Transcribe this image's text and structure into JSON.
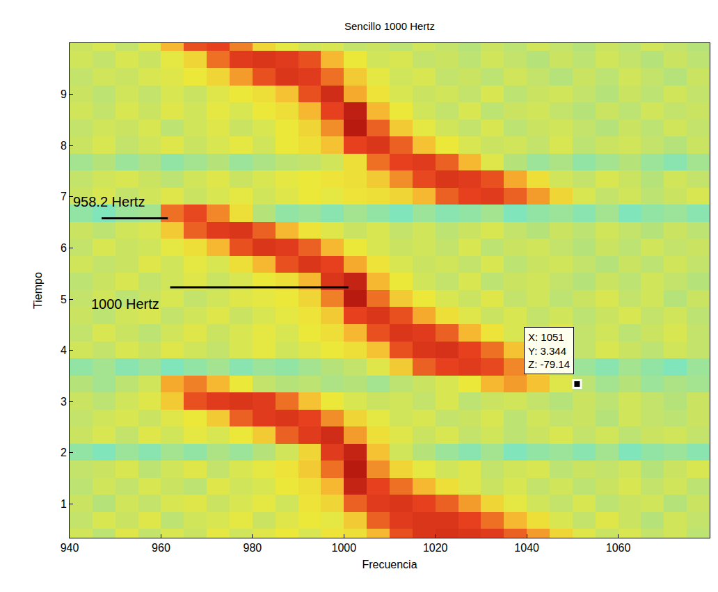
{
  "chart_data": {
    "type": "heatmap",
    "title": "Sencillo 1000 Hertz",
    "x_label": "Frecuencia",
    "y_label": "Tiempo",
    "xlim": [
      940,
      1080
    ],
    "ylim": [
      0.34,
      10.0
    ],
    "xticks": [
      940,
      960,
      980,
      1000,
      1020,
      1040,
      1060
    ],
    "yticks": [
      1,
      2,
      3,
      4,
      5,
      6,
      7,
      8,
      9
    ],
    "zlim": [
      -100,
      -30
    ],
    "x": [
      942.5,
      947.5,
      952.5,
      957.5,
      962.5,
      967.5,
      972.5,
      977.5,
      982.5,
      987.5,
      992.5,
      997.5,
      1002.5,
      1007.5,
      1012.5,
      1017.5,
      1022.5,
      1027.5,
      1032.5,
      1037.5,
      1042.5,
      1047.5,
      1052.5,
      1057.5,
      1062.5,
      1067.5,
      1072.5,
      1077.5
    ],
    "y": [
      0.344,
      0.677,
      1.011,
      1.344,
      1.677,
      2.011,
      2.344,
      2.677,
      3.011,
      3.344,
      3.677,
      4.011,
      4.344,
      4.677,
      5.011,
      5.344,
      5.677,
      6.011,
      6.344,
      6.677,
      7.011,
      7.344,
      7.677,
      8.011,
      8.344,
      8.677,
      9.011,
      9.344,
      9.677,
      10.011
    ],
    "z": [
      [
        -76,
        -79,
        -74,
        -78,
        -75,
        -77,
        -73,
        -76,
        -74,
        -72,
        -75,
        -71,
        -70,
        -62,
        -48,
        -44,
        -43,
        -44,
        -45,
        -50,
        -58,
        -68,
        -74,
        -77,
        -75,
        -78,
        -76,
        -79
      ],
      [
        -78,
        -75,
        -77,
        -74,
        -79,
        -76,
        -75,
        -73,
        -77,
        -74,
        -72,
        -73,
        -66,
        -50,
        -45,
        -44,
        -44,
        -46,
        -52,
        -62,
        -70,
        -75,
        -78,
        -74,
        -77,
        -80,
        -76,
        -78
      ],
      [
        -77,
        -80,
        -76,
        -78,
        -75,
        -74,
        -77,
        -75,
        -73,
        -76,
        -71,
        -68,
        -50,
        -45,
        -44,
        -46,
        -50,
        -58,
        -68,
        -73,
        -76,
        -78,
        -75,
        -79,
        -77,
        -76,
        -80,
        -77
      ],
      [
        -79,
        -76,
        -78,
        -75,
        -77,
        -79,
        -74,
        -76,
        -75,
        -72,
        -70,
        -62,
        -40,
        -46,
        -52,
        -62,
        -70,
        -74,
        -77,
        -75,
        -78,
        -76,
        -79,
        -77,
        -75,
        -78,
        -76,
        -79
      ],
      [
        -78,
        -77,
        -75,
        -79,
        -76,
        -74,
        -78,
        -75,
        -73,
        -71,
        -66,
        -52,
        -38,
        -56,
        -68,
        -73,
        -76,
        -74,
        -78,
        -76,
        -75,
        -79,
        -77,
        -78,
        -76,
        -80,
        -77,
        -75
      ],
      [
        -84,
        -86,
        -83,
        -85,
        -82,
        -84,
        -81,
        -83,
        -80,
        -76,
        -68,
        -45,
        -40,
        -64,
        -76,
        -80,
        -83,
        -85,
        -82,
        -86,
        -84,
        -83,
        -85,
        -82,
        -86,
        -84,
        -83,
        -85
      ],
      [
        -77,
        -75,
        -78,
        -74,
        -76,
        -73,
        -75,
        -72,
        -66,
        -50,
        -45,
        -42,
        -58,
        -70,
        -74,
        -77,
        -75,
        -78,
        -76,
        -79,
        -77,
        -75,
        -78,
        -76,
        -79,
        -77,
        -76,
        -78
      ],
      [
        -78,
        -76,
        -75,
        -77,
        -74,
        -72,
        -66,
        -50,
        -45,
        -44,
        -46,
        -56,
        -68,
        -73,
        -76,
        -75,
        -78,
        -77,
        -75,
        -79,
        -76,
        -78,
        -77,
        -80,
        -76,
        -78,
        -79,
        -77
      ],
      [
        -77,
        -79,
        -76,
        -74,
        -66,
        -48,
        -45,
        -44,
        -45,
        -52,
        -64,
        -72,
        -75,
        -77,
        -76,
        -78,
        -75,
        -79,
        -77,
        -76,
        -78,
        -80,
        -77,
        -79,
        -76,
        -78,
        -80,
        -77
      ],
      [
        -80,
        -82,
        -79,
        -76,
        -60,
        -54,
        -62,
        -72,
        -78,
        -80,
        -79,
        -81,
        -80,
        -82,
        -79,
        -77,
        -75,
        -72,
        -62,
        -58,
        -64,
        -74,
        -79.14,
        -82,
        -80,
        -83,
        -81,
        -82
      ],
      [
        -84,
        -82,
        -85,
        -83,
        -86,
        -84,
        -82,
        -85,
        -83,
        -84,
        -82,
        -80,
        -78,
        -74,
        -66,
        -50,
        -46,
        -45,
        -47,
        -55,
        -68,
        -78,
        -83,
        -85,
        -82,
        -84,
        -86,
        -83
      ],
      [
        -76,
        -78,
        -75,
        -77,
        -74,
        -76,
        -78,
        -75,
        -73,
        -76,
        -74,
        -72,
        -70,
        -64,
        -48,
        -44,
        -43,
        -46,
        -52,
        -64,
        -72,
        -76,
        -78,
        -75,
        -77,
        -79,
        -76,
        -78
      ],
      [
        -78,
        -75,
        -77,
        -79,
        -76,
        -74,
        -77,
        -75,
        -73,
        -75,
        -72,
        -70,
        -62,
        -48,
        -44,
        -45,
        -50,
        -62,
        -71,
        -75,
        -77,
        -74,
        -78,
        -76,
        -79,
        -77,
        -75,
        -78
      ],
      [
        -77,
        -79,
        -76,
        -75,
        -78,
        -76,
        -74,
        -77,
        -75,
        -73,
        -71,
        -66,
        -46,
        -44,
        -48,
        -60,
        -70,
        -74,
        -77,
        -75,
        -78,
        -76,
        -79,
        -77,
        -75,
        -78,
        -76,
        -79
      ],
      [
        -78,
        -76,
        -79,
        -77,
        -75,
        -78,
        -76,
        -74,
        -73,
        -72,
        -68,
        -54,
        -38,
        -52,
        -66,
        -72,
        -75,
        -77,
        -74,
        -78,
        -76,
        -79,
        -77,
        -75,
        -78,
        -76,
        -80,
        -77
      ],
      [
        -79,
        -77,
        -75,
        -78,
        -76,
        -74,
        -77,
        -75,
        -72,
        -70,
        -62,
        -44,
        -40,
        -62,
        -72,
        -76,
        -78,
        -75,
        -79,
        -77,
        -76,
        -78,
        -80,
        -77,
        -79,
        -76,
        -78,
        -80
      ],
      [
        -76,
        -78,
        -77,
        -74,
        -76,
        -73,
        -75,
        -70,
        -62,
        -48,
        -44,
        -46,
        -60,
        -71,
        -75,
        -77,
        -76,
        -78,
        -75,
        -79,
        -77,
        -76,
        -78,
        -80,
        -77,
        -79,
        -76,
        -78
      ],
      [
        -78,
        -75,
        -77,
        -76,
        -73,
        -70,
        -62,
        -48,
        -44,
        -45,
        -50,
        -62,
        -72,
        -75,
        -77,
        -76,
        -78,
        -75,
        -79,
        -77,
        -76,
        -78,
        -80,
        -77,
        -79,
        -76,
        -78,
        -77
      ],
      [
        -77,
        -79,
        -76,
        -75,
        -66,
        -50,
        -45,
        -44,
        -50,
        -62,
        -71,
        -74,
        -77,
        -75,
        -78,
        -76,
        -79,
        -77,
        -75,
        -78,
        -80,
        -77,
        -79,
        -76,
        -78,
        -80,
        -77,
        -79
      ],
      [
        -84,
        -86,
        -83,
        -82,
        -52,
        -47,
        -55,
        -70,
        -80,
        -84,
        -83,
        -85,
        -82,
        -84,
        -86,
        -83,
        -85,
        -84,
        -82,
        -86,
        -84,
        -83,
        -85,
        -82,
        -86,
        -84,
        -83,
        -85
      ],
      [
        -77,
        -75,
        -78,
        -76,
        -74,
        -77,
        -75,
        -73,
        -76,
        -74,
        -72,
        -73,
        -71,
        -70,
        -68,
        -62,
        -50,
        -46,
        -45,
        -50,
        -58,
        -68,
        -75,
        -78,
        -76,
        -79,
        -77,
        -75
      ],
      [
        -78,
        -76,
        -75,
        -77,
        -79,
        -76,
        -74,
        -77,
        -75,
        -73,
        -72,
        -71,
        -70,
        -66,
        -56,
        -47,
        -44,
        -45,
        -48,
        -60,
        -70,
        -76,
        -78,
        -75,
        -77,
        -80,
        -76,
        -78
      ],
      [
        -82,
        -80,
        -83,
        -81,
        -84,
        -82,
        -80,
        -83,
        -81,
        -79,
        -78,
        -76,
        -70,
        -52,
        -46,
        -45,
        -50,
        -62,
        -74,
        -80,
        -83,
        -81,
        -84,
        -82,
        -80,
        -83,
        -85,
        -82
      ],
      [
        -77,
        -75,
        -78,
        -76,
        -74,
        -77,
        -75,
        -73,
        -76,
        -72,
        -70,
        -64,
        -46,
        -44,
        -50,
        -64,
        -72,
        -75,
        -77,
        -76,
        -78,
        -75,
        -79,
        -77,
        -76,
        -78,
        -80,
        -77
      ],
      [
        -78,
        -76,
        -77,
        -75,
        -79,
        -76,
        -74,
        -77,
        -75,
        -72,
        -68,
        -56,
        -38,
        -50,
        -66,
        -73,
        -76,
        -78,
        -75,
        -79,
        -77,
        -76,
        -78,
        -80,
        -77,
        -79,
        -76,
        -78
      ],
      [
        -76,
        -78,
        -75,
        -77,
        -74,
        -76,
        -73,
        -75,
        -72,
        -70,
        -62,
        -46,
        -39,
        -62,
        -72,
        -76,
        -78,
        -75,
        -79,
        -77,
        -76,
        -78,
        -80,
        -77,
        -79,
        -76,
        -78,
        -77
      ],
      [
        -77,
        -79,
        -76,
        -78,
        -75,
        -77,
        -74,
        -72,
        -70,
        -64,
        -48,
        -42,
        -60,
        -71,
        -75,
        -77,
        -76,
        -78,
        -75,
        -79,
        -77,
        -76,
        -78,
        -80,
        -77,
        -79,
        -76,
        -78
      ],
      [
        -78,
        -76,
        -77,
        -75,
        -74,
        -72,
        -68,
        -58,
        -48,
        -44,
        -45,
        -52,
        -66,
        -73,
        -76,
        -75,
        -78,
        -77,
        -79,
        -76,
        -78,
        -80,
        -77,
        -79,
        -76,
        -78,
        -80,
        -77
      ],
      [
        -76,
        -78,
        -75,
        -77,
        -73,
        -68,
        -52,
        -45,
        -44,
        -45,
        -48,
        -62,
        -72,
        -76,
        -75,
        -78,
        -77,
        -79,
        -76,
        -78,
        -80,
        -77,
        -79,
        -76,
        -78,
        -80,
        -77,
        -79
      ],
      [
        -77,
        -75,
        -78,
        -74,
        -62,
        -48,
        -46,
        -54,
        -68,
        -73,
        -76,
        -75,
        -78,
        -77,
        -79,
        -76,
        -78,
        -80,
        -77,
        -79,
        -76,
        -78,
        -80,
        -77,
        -79,
        -76,
        -78,
        -80
      ]
    ],
    "annotations": [
      {
        "text": "958.2 Hertz",
        "x": [
          947,
          961.5
        ],
        "y": 6.58
      },
      {
        "text": "1000 Hertz",
        "x": [
          962,
          1001
        ],
        "y": 5.23
      }
    ],
    "datatip": {
      "x": 1051,
      "y": 3.344,
      "text": [
        "X: 1051",
        "Y: 3.344",
        "Z: -79.14"
      ]
    }
  }
}
